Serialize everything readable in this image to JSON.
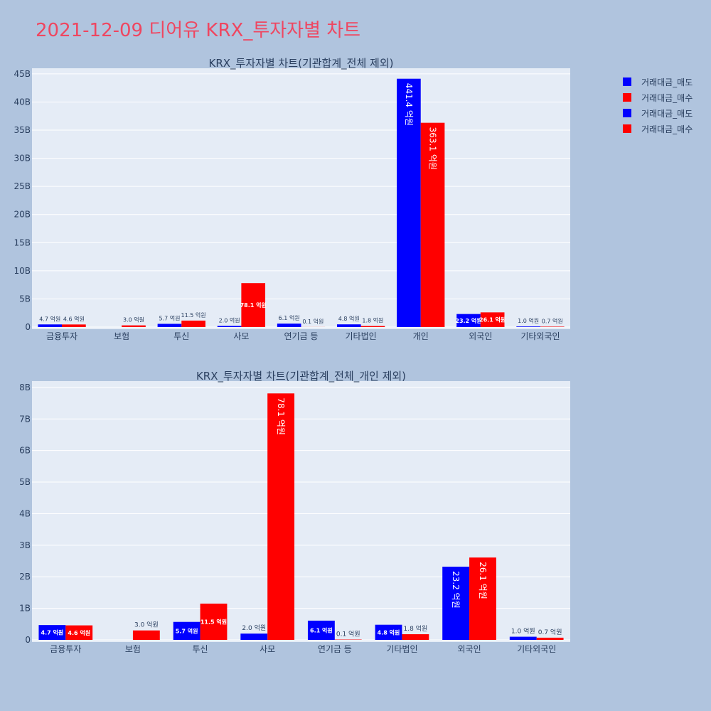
{
  "title": "2021-12-09 디어유 KRX_투자자별 차트",
  "colors": {
    "background": "#b0c4de",
    "plot_bg": "#e5ecf6",
    "sell": "#0000ff",
    "buy": "#ff0000",
    "title": "#ef4660",
    "text": "#2a3f5f"
  },
  "legend": [
    {
      "label": "거래대금_매도",
      "color": "#0000ff"
    },
    {
      "label": "거래대금_매수",
      "color": "#ff0000"
    },
    {
      "label": "거래대금_매도",
      "color": "#0000ff"
    },
    {
      "label": "거래대금_매수",
      "color": "#ff0000"
    }
  ],
  "chart_data": [
    {
      "type": "bar",
      "title": "KRX_투자자별 차트(기관합계_전체 제외)",
      "categories": [
        "금융투자",
        "보험",
        "투신",
        "사모",
        "연기금 등",
        "기타법인",
        "개인",
        "외국인",
        "기타외국인"
      ],
      "series": [
        {
          "name": "거래대금_매도",
          "values": [
            0.47,
            0,
            0.57,
            0.2,
            0.61,
            0.48,
            44.14,
            2.32,
            0.1
          ],
          "labels": [
            "4.7 억원",
            "",
            "5.7 억원",
            "2.0 억원",
            "6.1 억원",
            "4.8 억원",
            "441.4 억원",
            "23.2 억원",
            "1.0 억원"
          ]
        },
        {
          "name": "거래대금_매수",
          "values": [
            0.46,
            0.3,
            1.15,
            7.81,
            0.01,
            0.18,
            36.31,
            2.61,
            0.07
          ],
          "labels": [
            "4.6 억원",
            "3.0 억원",
            "11.5 억원",
            "78.1 억원",
            "0.1 억원",
            "1.8 억원",
            "363.1 억원",
            "26.1 억원",
            "0.7 억원"
          ]
        }
      ],
      "ylim": [
        0,
        46
      ],
      "yticks": [
        0,
        5,
        10,
        15,
        20,
        25,
        30,
        35,
        40,
        45
      ],
      "ytick_labels": [
        "0",
        "5B",
        "10B",
        "15B",
        "20B",
        "25B",
        "30B",
        "35B",
        "40B",
        "45B"
      ]
    },
    {
      "type": "bar",
      "title": "KRX_투자자별 차트(기관합계_전체_개인 제외)",
      "categories": [
        "금융투자",
        "보험",
        "투신",
        "사모",
        "연기금 등",
        "기타법인",
        "외국인",
        "기타외국인"
      ],
      "series": [
        {
          "name": "거래대금_매도",
          "values": [
            0.47,
            0,
            0.57,
            0.2,
            0.61,
            0.48,
            2.32,
            0.1
          ],
          "labels": [
            "4.7 억원",
            "",
            "5.7 억원",
            "2.0 억원",
            "6.1 억원",
            "4.8 억원",
            "23.2 억원",
            "1.0 억원"
          ]
        },
        {
          "name": "거래대금_매수",
          "values": [
            0.46,
            0.3,
            1.15,
            7.81,
            0.01,
            0.18,
            2.61,
            0.07
          ],
          "labels": [
            "4.6 억원",
            "3.0 억원",
            "11.5 억원",
            "78.1 억원",
            "0.1 억원",
            "1.8 억원",
            "26.1 억원",
            "0.7 억원"
          ]
        }
      ],
      "ylim": [
        0,
        8.2
      ],
      "yticks": [
        0,
        1,
        2,
        3,
        4,
        5,
        6,
        7,
        8
      ],
      "ytick_labels": [
        "0",
        "1B",
        "2B",
        "3B",
        "4B",
        "5B",
        "6B",
        "7B",
        "8B"
      ]
    }
  ]
}
